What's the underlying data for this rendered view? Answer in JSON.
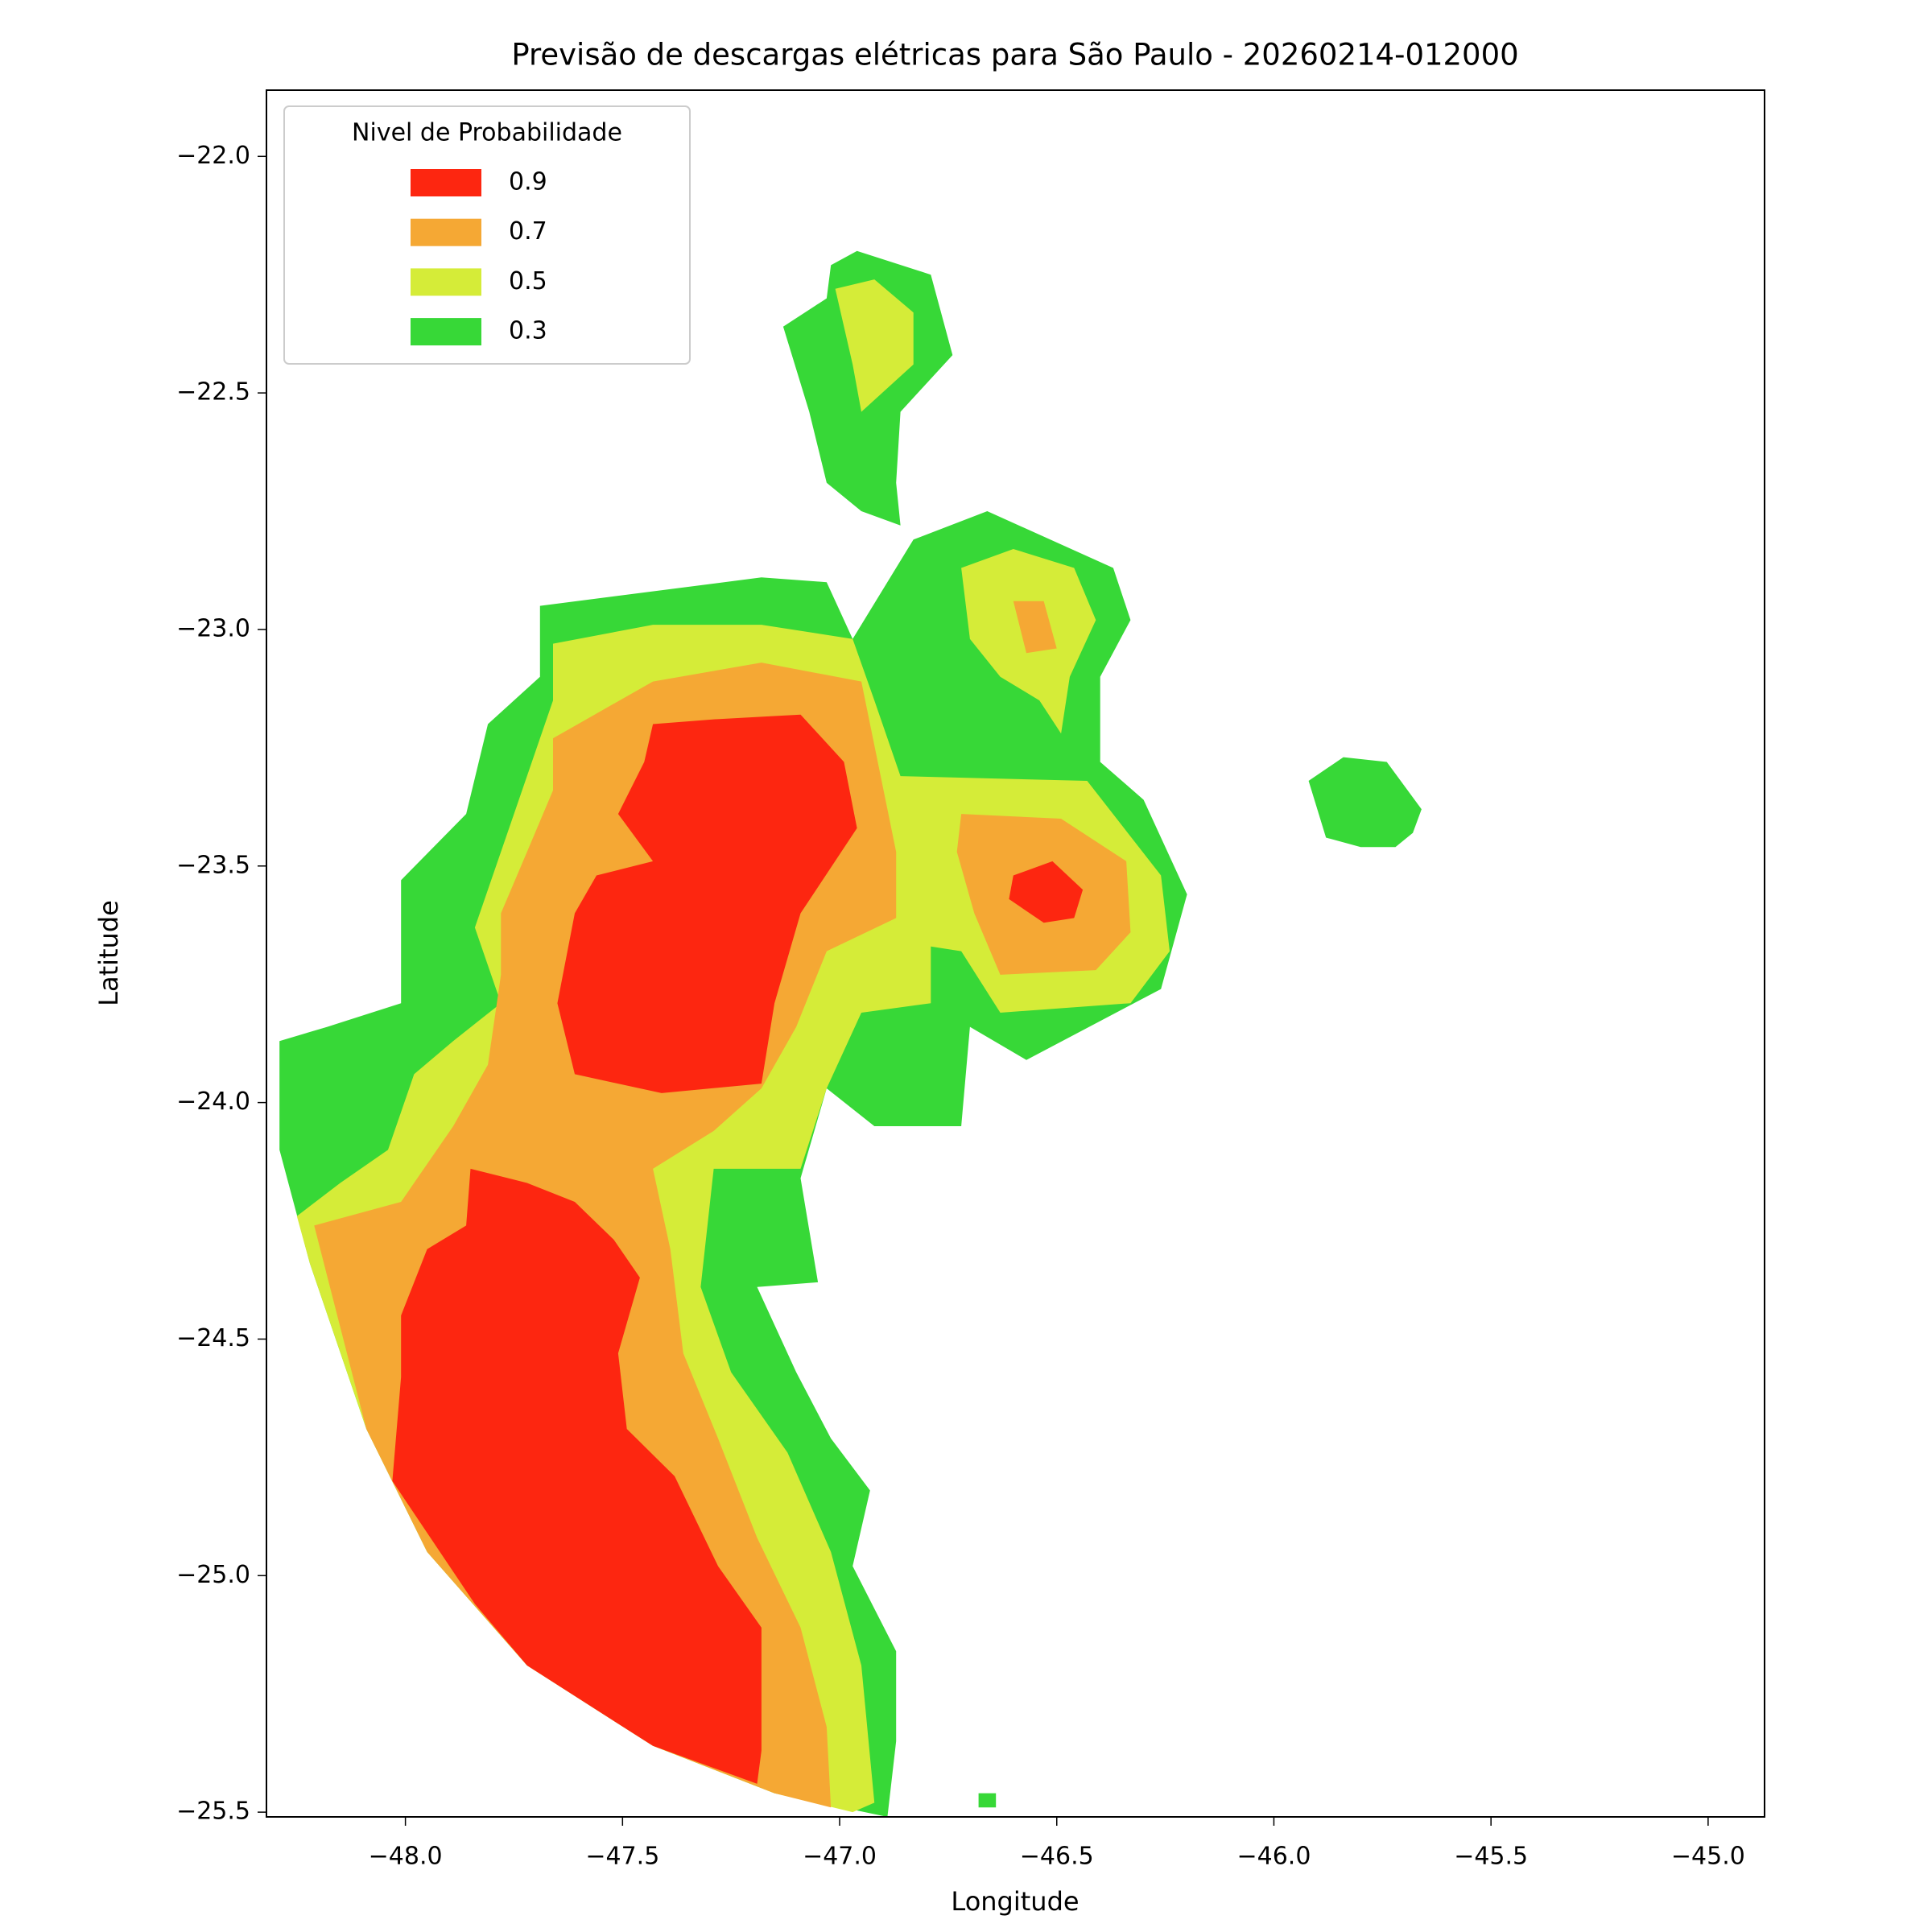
{
  "chart_data": {
    "type": "filled_contour",
    "title": "Previsão de descargas elétricas para São Paulo - 20260214-012000",
    "xlabel": "Longitude",
    "ylabel": "Latitude",
    "xlim": [
      -48.32,
      -44.87
    ],
    "ylim": [
      -25.51,
      -21.86
    ],
    "xticks": [
      {
        "value": -48,
        "label": "−48.0"
      },
      {
        "value": -47.5,
        "label": "−47.5"
      },
      {
        "value": -47,
        "label": "−47.0"
      },
      {
        "value": -46.5,
        "label": "−46.5"
      },
      {
        "value": -46,
        "label": "−46.0"
      },
      {
        "value": -45.5,
        "label": "−45.5"
      },
      {
        "value": -45,
        "label": "−45.0"
      }
    ],
    "yticks": [
      {
        "value": -22,
        "label": "−22.0"
      },
      {
        "value": -22.5,
        "label": "−22.5"
      },
      {
        "value": -23,
        "label": "−23.0"
      },
      {
        "value": -23.5,
        "label": "−23.5"
      },
      {
        "value": -24,
        "label": "−24.0"
      },
      {
        "value": -24.5,
        "label": "−24.5"
      },
      {
        "value": -25,
        "label": "−25.0"
      },
      {
        "value": -25.5,
        "label": "−25.5"
      }
    ],
    "grid": false,
    "legend_title": "Nivel de Probabilidade",
    "legend_loc": "upper left",
    "series": [
      {
        "name": "0.9",
        "color": "#fd2610",
        "polygons": [
          [
            [
              -47.43,
              -23.2
            ],
            [
              -47.29,
              -23.19
            ],
            [
              -47.09,
              -23.18
            ],
            [
              -46.99,
              -23.28
            ],
            [
              -46.96,
              -23.42
            ],
            [
              -47.09,
              -23.6
            ],
            [
              -47.15,
              -23.79
            ],
            [
              -47.18,
              -23.96
            ],
            [
              -47.41,
              -23.98
            ],
            [
              -47.61,
              -23.94
            ],
            [
              -47.65,
              -23.79
            ],
            [
              -47.61,
              -23.6
            ],
            [
              -47.56,
              -23.52
            ],
            [
              -47.43,
              -23.49
            ],
            [
              -47.51,
              -23.39
            ],
            [
              -47.45,
              -23.28
            ]
          ],
          [
            [
              -47.85,
              -24.14
            ],
            [
              -47.72,
              -24.17
            ],
            [
              -47.61,
              -24.21
            ],
            [
              -47.52,
              -24.29
            ],
            [
              -47.46,
              -24.37
            ],
            [
              -47.51,
              -24.53
            ],
            [
              -47.49,
              -24.69
            ],
            [
              -47.38,
              -24.79
            ],
            [
              -47.28,
              -24.98
            ],
            [
              -47.18,
              -25.11
            ],
            [
              -47.18,
              -25.37
            ],
            [
              -47.19,
              -25.44
            ],
            [
              -47.43,
              -25.36
            ],
            [
              -47.72,
              -25.19
            ],
            [
              -47.84,
              -25.06
            ],
            [
              -48.03,
              -24.8
            ],
            [
              -48.01,
              -24.58
            ],
            [
              -48.01,
              -24.45
            ],
            [
              -47.95,
              -24.31
            ],
            [
              -47.86,
              -24.26
            ]
          ],
          [
            [
              -46.6,
              -23.52
            ],
            [
              -46.51,
              -23.49
            ],
            [
              -46.44,
              -23.55
            ],
            [
              -46.46,
              -23.61
            ],
            [
              -46.53,
              -23.62
            ],
            [
              -46.61,
              -23.57
            ]
          ]
        ]
      },
      {
        "name": "0.7",
        "color": "#f5a834",
        "polygons": [
          [
            [
              -47.66,
              -23.23
            ],
            [
              -47.43,
              -23.11
            ],
            [
              -47.18,
              -23.07
            ],
            [
              -46.95,
              -23.11
            ],
            [
              -46.87,
              -23.47
            ],
            [
              -46.87,
              -23.61
            ],
            [
              -47.03,
              -23.68
            ],
            [
              -47.1,
              -23.84
            ],
            [
              -47.18,
              -23.97
            ],
            [
              -47.29,
              -24.06
            ],
            [
              -47.43,
              -24.14
            ],
            [
              -47.39,
              -24.31
            ],
            [
              -47.36,
              -24.53
            ],
            [
              -47.28,
              -24.71
            ],
            [
              -47.19,
              -24.92
            ],
            [
              -47.09,
              -25.11
            ],
            [
              -47.03,
              -25.32
            ],
            [
              -47.02,
              -25.49
            ],
            [
              -47.15,
              -25.46
            ],
            [
              -47.43,
              -25.36
            ],
            [
              -47.72,
              -25.19
            ],
            [
              -47.95,
              -24.95
            ],
            [
              -48.09,
              -24.69
            ],
            [
              -48.21,
              -24.26
            ],
            [
              -48.01,
              -24.21
            ],
            [
              -47.89,
              -24.05
            ],
            [
              -47.81,
              -23.92
            ],
            [
              -47.78,
              -23.73
            ],
            [
              -47.78,
              -23.6
            ],
            [
              -47.72,
              -23.47
            ],
            [
              -47.66,
              -23.34
            ]
          ],
          [
            [
              -46.72,
              -23.39
            ],
            [
              -46.49,
              -23.4
            ],
            [
              -46.34,
              -23.49
            ],
            [
              -46.33,
              -23.64
            ],
            [
              -46.41,
              -23.72
            ],
            [
              -46.63,
              -23.73
            ],
            [
              -46.69,
              -23.6
            ],
            [
              -46.73,
              -23.47
            ]
          ],
          [
            [
              -46.6,
              -22.94
            ],
            [
              -46.53,
              -22.94
            ],
            [
              -46.5,
              -23.04
            ],
            [
              -46.57,
              -23.05
            ]
          ]
        ]
      },
      {
        "name": "0.5",
        "color": "#d5ec38",
        "polygons": [
          [
            [
              -47.66,
              -23.03
            ],
            [
              -47.43,
              -22.99
            ],
            [
              -47.18,
              -22.99
            ],
            [
              -46.97,
              -23.02
            ],
            [
              -46.92,
              -23.15
            ],
            [
              -46.86,
              -23.31
            ],
            [
              -46.43,
              -23.32
            ],
            [
              -46.26,
              -23.52
            ],
            [
              -46.24,
              -23.68
            ],
            [
              -46.33,
              -23.79
            ],
            [
              -46.63,
              -23.81
            ],
            [
              -46.72,
              -23.68
            ],
            [
              -46.79,
              -23.67
            ],
            [
              -46.79,
              -23.79
            ],
            [
              -46.95,
              -23.81
            ],
            [
              -47.03,
              -23.97
            ],
            [
              -47.09,
              -24.14
            ],
            [
              -47.29,
              -24.14
            ],
            [
              -47.32,
              -24.39
            ],
            [
              -47.25,
              -24.57
            ],
            [
              -47.12,
              -24.74
            ],
            [
              -47.02,
              -24.95
            ],
            [
              -46.95,
              -25.19
            ],
            [
              -46.92,
              -25.48
            ],
            [
              -46.97,
              -25.5
            ],
            [
              -47.15,
              -25.46
            ],
            [
              -47.43,
              -25.36
            ],
            [
              -47.72,
              -25.19
            ],
            [
              -47.95,
              -24.95
            ],
            [
              -48.09,
              -24.69
            ],
            [
              -48.22,
              -24.34
            ],
            [
              -48.25,
              -24.24
            ],
            [
              -48.15,
              -24.17
            ],
            [
              -48.04,
              -24.1
            ],
            [
              -47.98,
              -23.94
            ],
            [
              -47.89,
              -23.87
            ],
            [
              -47.78,
              -23.79
            ],
            [
              -47.84,
              -23.63
            ],
            [
              -47.75,
              -23.39
            ],
            [
              -47.66,
              -23.15
            ]
          ],
          [
            [
              -47.01,
              -22.28
            ],
            [
              -46.92,
              -22.26
            ],
            [
              -46.83,
              -22.33
            ],
            [
              -46.83,
              -22.44
            ],
            [
              -46.95,
              -22.54
            ],
            [
              -46.97,
              -22.44
            ]
          ],
          [
            [
              -46.72,
              -22.87
            ],
            [
              -46.6,
              -22.83
            ],
            [
              -46.46,
              -22.87
            ],
            [
              -46.41,
              -22.98
            ],
            [
              -46.47,
              -23.1
            ],
            [
              -46.49,
              -23.22
            ],
            [
              -46.54,
              -23.15
            ],
            [
              -46.63,
              -23.1
            ],
            [
              -46.7,
              -23.02
            ]
          ]
        ]
      },
      {
        "name": "0.3",
        "color": "#37d837",
        "polygons": [
          [
            [
              -47.69,
              -22.95
            ],
            [
              -47.18,
              -22.89
            ],
            [
              -47.03,
              -22.9
            ],
            [
              -46.97,
              -23.02
            ],
            [
              -46.83,
              -22.81
            ],
            [
              -46.66,
              -22.75
            ],
            [
              -46.37,
              -22.87
            ],
            [
              -46.33,
              -22.98
            ],
            [
              -46.4,
              -23.1
            ],
            [
              -46.4,
              -23.28
            ],
            [
              -46.3,
              -23.36
            ],
            [
              -46.2,
              -23.56
            ],
            [
              -46.26,
              -23.76
            ],
            [
              -46.57,
              -23.91
            ],
            [
              -46.7,
              -23.84
            ],
            [
              -46.72,
              -24.05
            ],
            [
              -46.92,
              -24.05
            ],
            [
              -47.03,
              -23.97
            ],
            [
              -47.09,
              -24.16
            ],
            [
              -47.05,
              -24.38
            ],
            [
              -47.19,
              -24.39
            ],
            [
              -47.1,
              -24.57
            ],
            [
              -47.02,
              -24.71
            ],
            [
              -46.93,
              -24.82
            ],
            [
              -46.97,
              -24.98
            ],
            [
              -46.87,
              -25.16
            ],
            [
              -46.87,
              -25.35
            ],
            [
              -46.89,
              -25.51
            ],
            [
              -47.15,
              -25.46
            ],
            [
              -47.43,
              -25.36
            ],
            [
              -47.72,
              -25.19
            ],
            [
              -47.95,
              -24.95
            ],
            [
              -48.09,
              -24.69
            ],
            [
              -48.22,
              -24.34
            ],
            [
              -48.29,
              -24.1
            ],
            [
              -48.29,
              -23.87
            ],
            [
              -48.18,
              -23.84
            ],
            [
              -48.01,
              -23.79
            ],
            [
              -48.01,
              -23.53
            ],
            [
              -47.86,
              -23.39
            ],
            [
              -47.81,
              -23.2
            ],
            [
              -47.69,
              -23.1
            ]
          ],
          [
            [
              -47.13,
              -22.36
            ],
            [
              -47.03,
              -22.3
            ],
            [
              -47.02,
              -22.23
            ],
            [
              -46.96,
              -22.2
            ],
            [
              -46.79,
              -22.25
            ],
            [
              -46.74,
              -22.42
            ],
            [
              -46.86,
              -22.54
            ],
            [
              -46.87,
              -22.69
            ],
            [
              -46.86,
              -22.78
            ],
            [
              -46.95,
              -22.75
            ],
            [
              -47.03,
              -22.69
            ],
            [
              -47.07,
              -22.54
            ]
          ],
          [
            [
              -45.92,
              -23.32
            ],
            [
              -45.84,
              -23.27
            ],
            [
              -45.74,
              -23.28
            ],
            [
              -45.66,
              -23.38
            ],
            [
              -45.68,
              -23.43
            ],
            [
              -45.72,
              -23.46
            ],
            [
              -45.8,
              -23.46
            ],
            [
              -45.88,
              -23.44
            ]
          ],
          [
            [
              -46.68,
              -25.46
            ],
            [
              -46.64,
              -25.46
            ],
            [
              -46.64,
              -25.49
            ],
            [
              -46.68,
              -25.49
            ]
          ]
        ]
      }
    ]
  }
}
